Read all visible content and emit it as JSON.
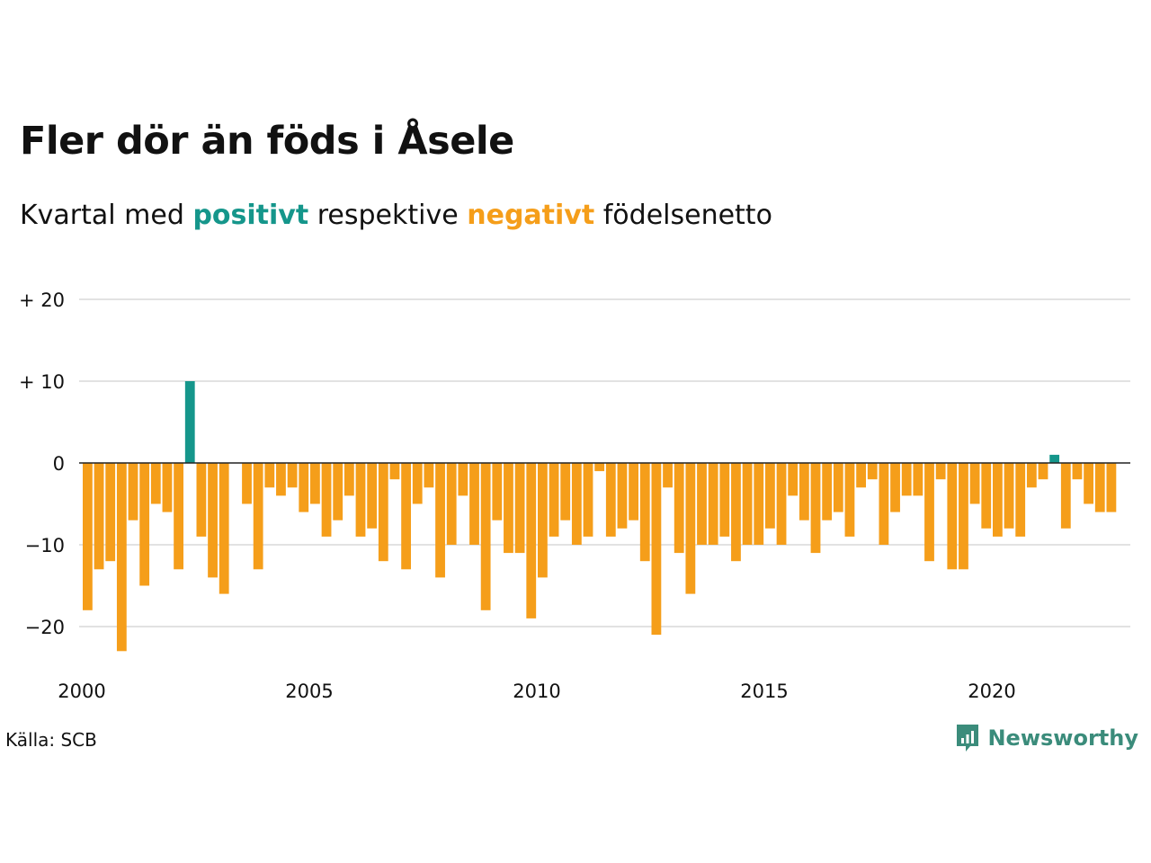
{
  "title": "Fler dör än föds i Åsele",
  "subtitle": {
    "prefix": "Kvartal med",
    "positive_word": "positivt",
    "middle": "respektive",
    "negative_word": "negativt",
    "suffix": "födelsenetto"
  },
  "source": "Källa: SCB",
  "brand": {
    "name": "Newsworthy",
    "icon": "newsworthy-logo-icon"
  },
  "colors": {
    "positive": "#15968b",
    "negative": "#f59e1a",
    "grid": "#e2e2e2",
    "zero": "#222222",
    "brand": "#3b8c7b"
  },
  "chart_data": {
    "type": "bar",
    "x_start_quarter": "2000 Q1",
    "xticks": [
      "2000",
      "2005",
      "2010",
      "2015",
      "2020"
    ],
    "ytick_values": [
      20,
      10,
      0,
      -10,
      -20
    ],
    "ytick_labels": [
      "+ 20",
      "+ 10",
      "0",
      "−10",
      "−20"
    ],
    "ylim": [
      -25,
      20
    ],
    "grid": true,
    "values": [
      -18,
      -13,
      -12,
      -23,
      -7,
      -15,
      -5,
      -6,
      -13,
      10,
      -9,
      -14,
      -16,
      0,
      -5,
      -13,
      -3,
      -4,
      -3,
      -6,
      -5,
      -9,
      -7,
      -4,
      -9,
      -8,
      -12,
      -2,
      -13,
      -5,
      -3,
      -14,
      -10,
      -4,
      -10,
      -18,
      -7,
      -11,
      -11,
      -19,
      -14,
      -9,
      -7,
      -10,
      -9,
      -1,
      -9,
      -8,
      -7,
      -12,
      -21,
      -3,
      -11,
      -16,
      -10,
      -10,
      -9,
      -12,
      -10,
      -10,
      -8,
      -10,
      -4,
      -7,
      -11,
      -7,
      -6,
      -9,
      -3,
      -2,
      -10,
      -6,
      -4,
      -4,
      -12,
      -2,
      -13,
      -13,
      -5,
      -8,
      -9,
      -8,
      -9,
      -3,
      -2,
      1,
      -8,
      -2,
      -5,
      -6,
      -6
    ]
  }
}
